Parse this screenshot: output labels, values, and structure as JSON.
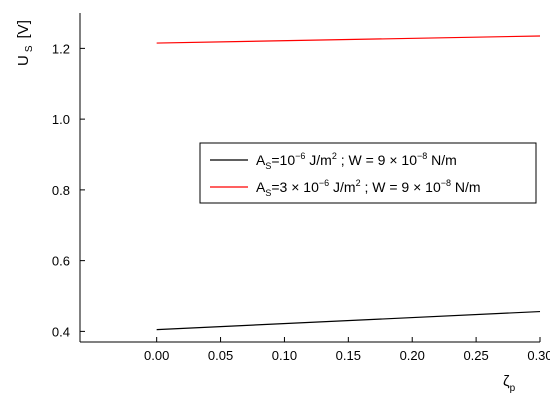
{
  "chart_data": {
    "type": "line",
    "xlabel": "ζ",
    "xlabel_sub": "p",
    "ylabel": "U",
    "ylabel_sub": "S",
    "ylabel_unit": "[V]",
    "xlim": [
      -0.06,
      0.3
    ],
    "ylim": [
      0.37,
      1.3
    ],
    "x_ticks": [
      "0.00",
      "0.05",
      "0.10",
      "0.15",
      "0.20",
      "0.25",
      "0.30"
    ],
    "x_tick_values": [
      0,
      0.05,
      0.1,
      0.15,
      0.2,
      0.25,
      0.3
    ],
    "y_ticks": [
      "0.4",
      "0.6",
      "0.8",
      "1.0",
      "1.2"
    ],
    "y_tick_values": [
      0.4,
      0.6,
      0.8,
      1.0,
      1.2
    ],
    "grid": false,
    "legend_position": "middle-right",
    "series": [
      {
        "color": "#000000",
        "x": [
          0,
          0.3
        ],
        "values": [
          0.405,
          0.456
        ],
        "legend": {
          "a": "A",
          "a_sub": "S",
          "b": "=10",
          "b_sup": "−6",
          "c": " J/m",
          "c_sup": "2",
          "d": " ; W = 9 × 10",
          "d_sup": "−8",
          "e": " N/m"
        }
      },
      {
        "color": "#ff0000",
        "x": [
          0,
          0.3
        ],
        "values": [
          1.215,
          1.235
        ],
        "legend": {
          "a": "A",
          "a_sub": "S",
          "b": "=3 × 10",
          "b_sup": "−6",
          "c": " J/m",
          "c_sup": "2",
          "d": " ; W = 9 × 10",
          "d_sup": "−8",
          "e": " N/m"
        }
      }
    ]
  }
}
